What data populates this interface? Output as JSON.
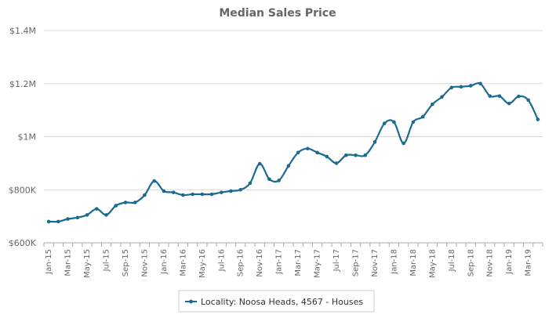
{
  "chart_data": {
    "type": "line",
    "title": "Median Sales Price",
    "xlabel": "",
    "ylabel": "",
    "ylim": [
      600000,
      1400000
    ],
    "y_ticks": [
      {
        "value": 600000,
        "label": "$600K"
      },
      {
        "value": 800000,
        "label": "$800K"
      },
      {
        "value": 1000000,
        "label": "$1M"
      },
      {
        "value": 1200000,
        "label": "$1.2M"
      },
      {
        "value": 1400000,
        "label": "$1.4M"
      }
    ],
    "x_tick_labels": [
      "Jan-15",
      "Mar-15",
      "May-15",
      "Jul-15",
      "Sep-15",
      "Nov-15",
      "Jan-16",
      "Mar-16",
      "May-16",
      "Jul-16",
      "Sep-16",
      "Nov-16",
      "Jan-17",
      "Mar-17",
      "May-17",
      "Jul-17",
      "Sep-17",
      "Nov-17",
      "Jan-18",
      "Mar-18",
      "May-18",
      "Jul-18",
      "Sep-18",
      "Nov-18",
      "Jan-19",
      "Mar-19"
    ],
    "categories": [
      "Jan-15",
      "Feb-15",
      "Mar-15",
      "Apr-15",
      "May-15",
      "Jun-15",
      "Jul-15",
      "Aug-15",
      "Sep-15",
      "Oct-15",
      "Nov-15",
      "Dec-15",
      "Jan-16",
      "Feb-16",
      "Mar-16",
      "Apr-16",
      "May-16",
      "Jun-16",
      "Jul-16",
      "Aug-16",
      "Sep-16",
      "Oct-16",
      "Nov-16",
      "Dec-16",
      "Jan-17",
      "Feb-17",
      "Mar-17",
      "Apr-17",
      "May-17",
      "Jun-17",
      "Jul-17",
      "Aug-17",
      "Sep-17",
      "Oct-17",
      "Nov-17",
      "Dec-17",
      "Jan-18",
      "Feb-18",
      "Mar-18",
      "Apr-18",
      "May-18",
      "Jun-18",
      "Jul-18",
      "Aug-18",
      "Sep-18",
      "Oct-18",
      "Nov-18",
      "Dec-18",
      "Jan-19",
      "Feb-19",
      "Mar-19",
      "Apr-19"
    ],
    "series": [
      {
        "name": "Locality: Noosa Heads, 4567 - Houses",
        "color": "#1b6a8f",
        "values": [
          680000,
          680000,
          690000,
          695000,
          705000,
          728000,
          705000,
          740000,
          752000,
          752000,
          780000,
          833000,
          795000,
          790000,
          780000,
          783000,
          783000,
          783000,
          790000,
          795000,
          800000,
          825000,
          898000,
          840000,
          835000,
          890000,
          940000,
          955000,
          940000,
          925000,
          900000,
          930000,
          930000,
          930000,
          980000,
          1050000,
          1055000,
          975000,
          1055000,
          1075000,
          1122000,
          1150000,
          1185000,
          1188000,
          1192000,
          1200000,
          1153000,
          1153000,
          1125000,
          1152000,
          1138000,
          1065000
        ]
      }
    ],
    "legend_position": "bottom-center",
    "grid": true
  }
}
